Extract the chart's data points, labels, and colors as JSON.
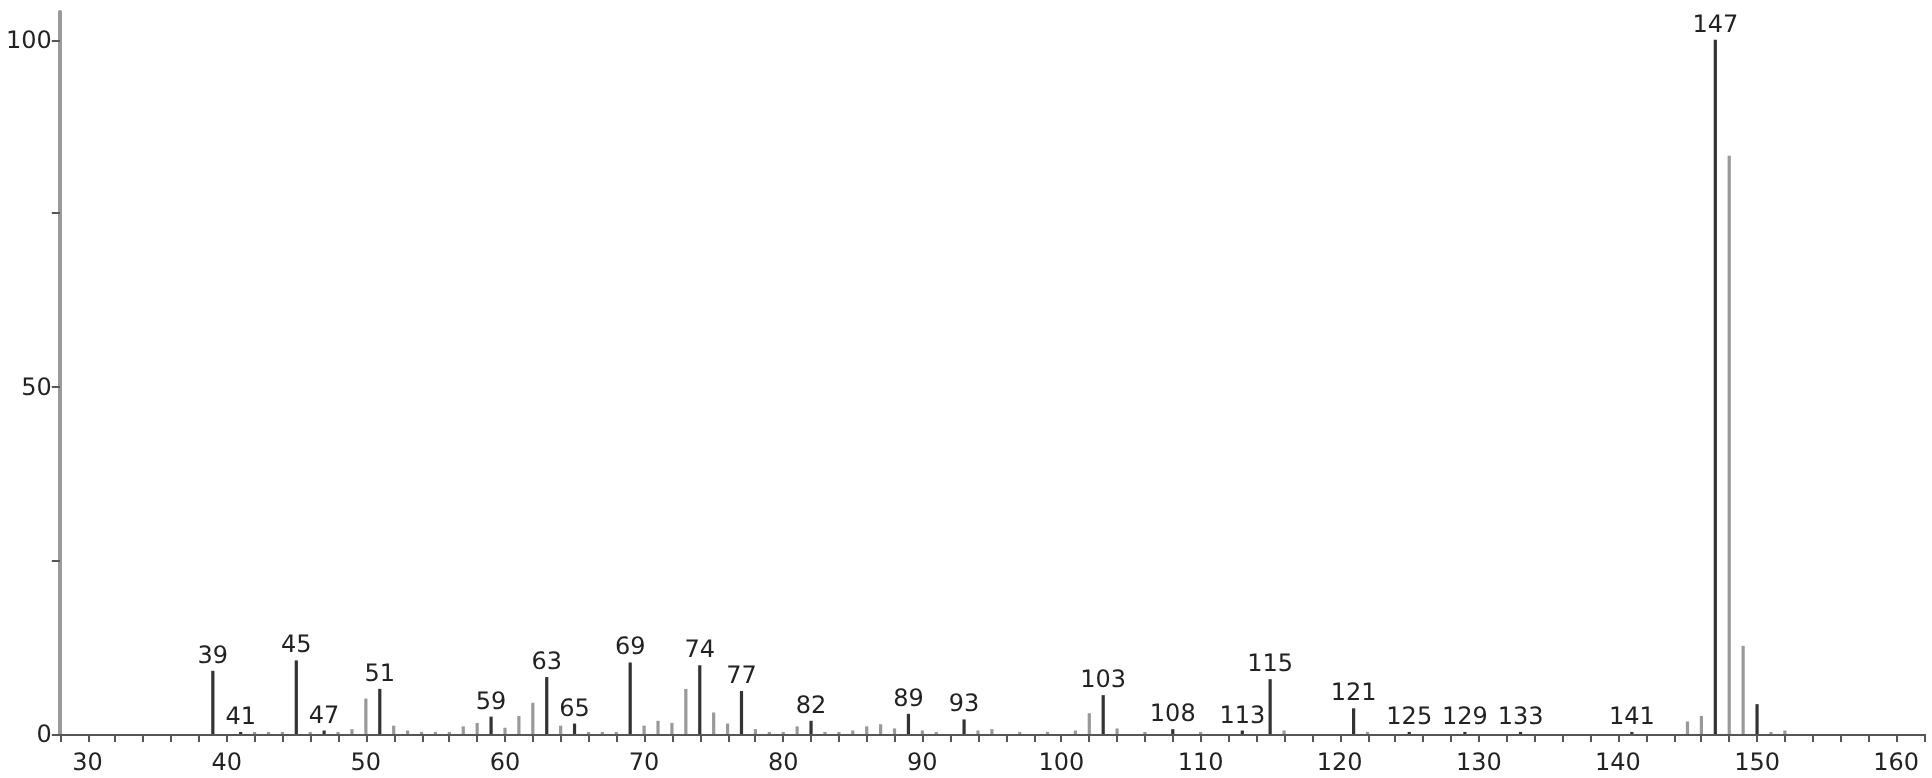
{
  "chart_data": {
    "type": "bar",
    "x": [
      39,
      41,
      42,
      43,
      44,
      45,
      46,
      47,
      48,
      49,
      50,
      51,
      52,
      53,
      54,
      55,
      56,
      57,
      58,
      59,
      60,
      61,
      62,
      63,
      64,
      65,
      66,
      67,
      68,
      69,
      70,
      71,
      72,
      73,
      74,
      75,
      76,
      77,
      78,
      79,
      80,
      81,
      82,
      83,
      84,
      85,
      86,
      87,
      88,
      89,
      90,
      91,
      93,
      94,
      95,
      97,
      99,
      101,
      102,
      103,
      104,
      106,
      108,
      110,
      113,
      115,
      116,
      121,
      122,
      125,
      129,
      133,
      141,
      145,
      146,
      147,
      148,
      149,
      150,
      151,
      152
    ],
    "values": [
      9.1,
      0.3,
      0.3,
      0.3,
      0.3,
      10.6,
      0.3,
      0.5,
      0.3,
      0.7,
      5.1,
      6.5,
      1.2,
      0.5,
      0.3,
      0.3,
      0.3,
      1.1,
      1.6,
      2.5,
      0.9,
      2.6,
      4.5,
      8.2,
      1.2,
      1.5,
      0.3,
      0.3,
      0.3,
      10.3,
      1.2,
      1.9,
      1.6,
      6.5,
      9.9,
      3.1,
      1.5,
      6.2,
      0.7,
      0.3,
      0.3,
      1.1,
      1.9,
      0.3,
      0.3,
      0.5,
      1.1,
      1.4,
      0.8,
      2.9,
      0.5,
      0.3,
      2.1,
      0.5,
      0.7,
      0.3,
      0.3,
      0.5,
      3.0,
      5.6,
      0.8,
      0.3,
      0.7,
      0.3,
      0.5,
      7.9,
      0.5,
      3.7,
      0.3,
      0.3,
      0.3,
      0.3,
      0.3,
      1.8,
      2.6,
      100,
      83.3,
      12.7,
      4.3,
      0.3,
      0.5
    ],
    "annotations": [
      {
        "text": "39",
        "x": 39,
        "y": 9.1
      },
      {
        "text": "41",
        "x": 41,
        "y": 0.3
      },
      {
        "text": "45",
        "x": 45,
        "y": 10.6
      },
      {
        "text": "47",
        "x": 47,
        "y": 0.5
      },
      {
        "text": "51",
        "x": 51,
        "y": 6.5
      },
      {
        "text": "59",
        "x": 59,
        "y": 2.5
      },
      {
        "text": "63",
        "x": 63,
        "y": 8.2
      },
      {
        "text": "65",
        "x": 65,
        "y": 1.5
      },
      {
        "text": "69",
        "x": 69,
        "y": 10.3
      },
      {
        "text": "74",
        "x": 74,
        "y": 9.9
      },
      {
        "text": "77",
        "x": 77,
        "y": 6.2
      },
      {
        "text": "82",
        "x": 82,
        "y": 1.9
      },
      {
        "text": "89",
        "x": 89,
        "y": 2.9
      },
      {
        "text": "93",
        "x": 93,
        "y": 2.1
      },
      {
        "text": "103",
        "x": 103,
        "y": 5.6
      },
      {
        "text": "108",
        "x": 108,
        "y": 0.7
      },
      {
        "text": "113",
        "x": 113,
        "y": 0.5
      },
      {
        "text": "115",
        "x": 115,
        "y": 7.9
      },
      {
        "text": "121",
        "x": 121,
        "y": 3.7
      },
      {
        "text": "125",
        "x": 125,
        "y": 0.3
      },
      {
        "text": "129",
        "x": 129,
        "y": 0.3
      },
      {
        "text": "133",
        "x": 133,
        "y": 0.3
      },
      {
        "text": "141",
        "x": 141,
        "y": 0.3
      },
      {
        "text": "147",
        "x": 147,
        "y": 100
      }
    ],
    "colors": [
      "#333333",
      "#333333",
      "#999999",
      "#999999",
      "#999999",
      "#333333",
      "#999999",
      "#333333",
      "#999999",
      "#999999",
      "#999999",
      "#333333",
      "#999999",
      "#999999",
      "#999999",
      "#999999",
      "#999999",
      "#999999",
      "#999999",
      "#333333",
      "#999999",
      "#999999",
      "#999999",
      "#333333",
      "#999999",
      "#333333",
      "#999999",
      "#999999",
      "#999999",
      "#333333",
      "#999999",
      "#999999",
      "#999999",
      "#999999",
      "#333333",
      "#999999",
      "#999999",
      "#333333",
      "#999999",
      "#999999",
      "#999999",
      "#999999",
      "#333333",
      "#999999",
      "#999999",
      "#999999",
      "#999999",
      "#999999",
      "#999999",
      "#333333",
      "#999999",
      "#999999",
      "#333333",
      "#999999",
      "#999999",
      "#999999",
      "#999999",
      "#999999",
      "#999999",
      "#333333",
      "#999999",
      "#999999",
      "#333333",
      "#999999",
      "#333333",
      "#333333",
      "#999999",
      "#333333",
      "#999999",
      "#333333",
      "#333333",
      "#333333",
      "#333333",
      "#999999",
      "#999999",
      "#333333",
      "#999999",
      "#999999",
      "#333333",
      "#999999",
      "#999999"
    ],
    "xlim": [
      28,
      162
    ],
    "xticks": [
      {
        "value": 28,
        "label": null
      },
      30,
      {
        "value": 32,
        "label": null
      },
      {
        "value": 34,
        "label": null
      },
      {
        "value": 36,
        "label": null
      },
      {
        "value": 38,
        "label": null
      },
      40,
      {
        "value": 42,
        "label": null
      },
      {
        "value": 44,
        "label": null
      },
      {
        "value": 46,
        "label": null
      },
      {
        "value": 48,
        "label": null
      },
      50,
      {
        "value": 52,
        "label": null
      },
      {
        "value": 54,
        "label": null
      },
      {
        "value": 56,
        "label": null
      },
      {
        "value": 58,
        "label": null
      },
      60,
      {
        "value": 62,
        "label": null
      },
      {
        "value": 64,
        "label": null
      },
      {
        "value": 66,
        "label": null
      },
      {
        "value": 68,
        "label": null
      },
      70,
      {
        "value": 72,
        "label": null
      },
      {
        "value": 74,
        "label": null
      },
      {
        "value": 76,
        "label": null
      },
      {
        "value": 78,
        "label": null
      },
      80,
      {
        "value": 82,
        "label": null
      },
      {
        "value": 84,
        "label": null
      },
      {
        "value": 86,
        "label": null
      },
      {
        "value": 88,
        "label": null
      },
      90,
      {
        "value": 92,
        "label": null
      },
      {
        "value": 94,
        "label": null
      },
      {
        "value": 96,
        "label": null
      },
      {
        "value": 98,
        "label": null
      },
      100,
      {
        "value": 102,
        "label": null
      },
      {
        "value": 104,
        "label": null
      },
      {
        "value": 106,
        "label": null
      },
      {
        "value": 108,
        "label": null
      },
      110,
      {
        "value": 112,
        "label": null
      },
      {
        "value": 114,
        "label": null
      },
      {
        "value": 116,
        "label": null
      },
      {
        "value": 118,
        "label": null
      },
      120,
      {
        "value": 122,
        "label": null
      },
      {
        "value": 124,
        "label": null
      },
      {
        "value": 126,
        "label": null
      },
      {
        "value": 128,
        "label": null
      },
      130,
      {
        "value": 132,
        "label": null
      },
      {
        "value": 134,
        "label": null
      },
      {
        "value": 136,
        "label": null
      },
      {
        "value": 138,
        "label": null
      },
      140,
      {
        "value": 142,
        "label": null
      },
      {
        "value": 144,
        "label": null
      },
      {
        "value": 146,
        "label": null
      },
      {
        "value": 148,
        "label": null
      },
      150,
      {
        "value": 152,
        "label": null
      },
      {
        "value": 154,
        "label": null
      },
      {
        "value": 156,
        "label": null
      },
      {
        "value": 158,
        "label": null
      },
      160,
      {
        "value": 162,
        "label": null
      }
    ],
    "ylim": [
      0,
      104
    ],
    "yticks": [
      0,
      {
        "value": 25,
        "label": null
      },
      50,
      {
        "value": 75,
        "label": null
      },
      100
    ],
    "grid": false
  }
}
